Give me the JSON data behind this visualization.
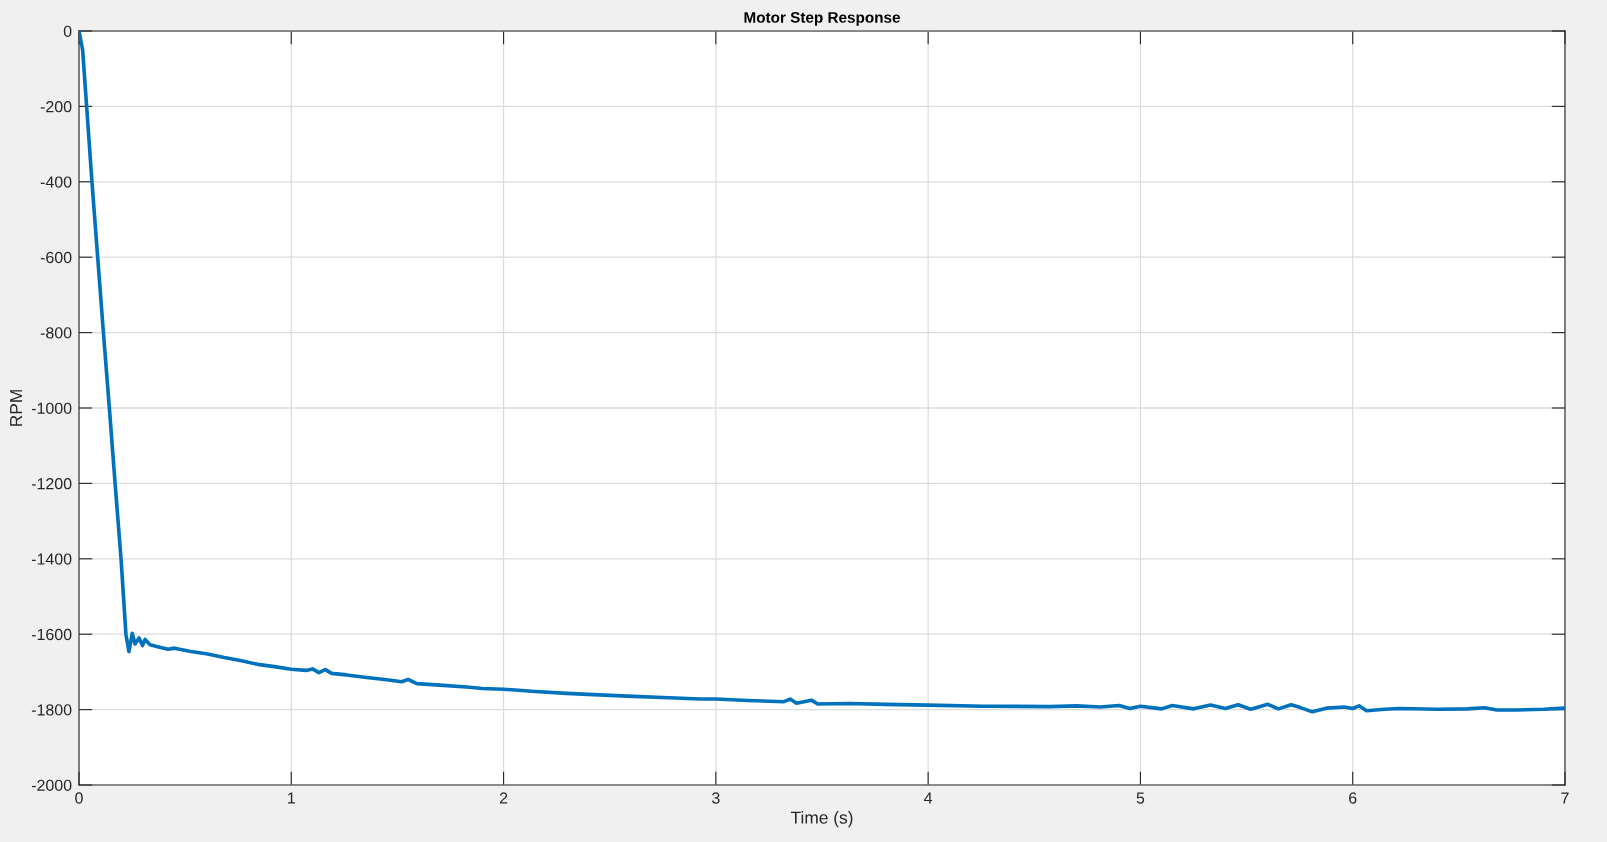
{
  "chart_data": {
    "type": "line",
    "title": "Motor Step Response",
    "xlabel": "Time (s)",
    "ylabel": "RPM",
    "x": [
      0,
      0.017,
      0.036,
      0.061,
      0.088,
      0.115,
      0.143,
      0.17,
      0.198,
      0.221,
      0.235,
      0.251,
      0.264,
      0.283,
      0.299,
      0.311,
      0.335,
      0.37,
      0.42,
      0.45,
      0.527,
      0.6,
      0.684,
      0.76,
      0.842,
      0.92,
      1.0,
      1.07,
      1.1,
      1.13,
      1.16,
      1.19,
      1.26,
      1.355,
      1.45,
      1.52,
      1.55,
      1.591,
      1.7,
      1.826,
      1.9,
      2.0,
      2.15,
      2.297,
      2.45,
      2.611,
      2.75,
      2.925,
      3.0,
      3.15,
      3.32,
      3.35,
      3.38,
      3.45,
      3.48,
      3.63,
      3.8,
      4.0,
      4.26,
      4.57,
      4.7,
      4.81,
      4.9,
      4.95,
      5.0,
      5.1,
      5.15,
      5.25,
      5.33,
      5.4,
      5.46,
      5.52,
      5.6,
      5.65,
      5.71,
      5.75,
      5.81,
      5.88,
      5.96,
      6.0,
      6.03,
      6.065,
      6.15,
      6.22,
      6.4,
      6.54,
      6.62,
      6.68,
      6.77,
      6.9,
      7.0
    ],
    "series": [
      {
        "color": "#0072bd",
        "values": [
          0,
          -50,
          -200,
          -400,
          -600,
          -800,
          -1000,
          -1200,
          -1400,
          -1600,
          -1646,
          -1598,
          -1626,
          -1610,
          -1630,
          -1614,
          -1628,
          -1633,
          -1640,
          -1637,
          -1646,
          -1652,
          -1662,
          -1670,
          -1680,
          -1686,
          -1693,
          -1696,
          -1692,
          -1702,
          -1694,
          -1704,
          -1708,
          -1715,
          -1721,
          -1726,
          -1720,
          -1731,
          -1735,
          -1740,
          -1744,
          -1746,
          -1752,
          -1757,
          -1761,
          -1765,
          -1768,
          -1772,
          -1772,
          -1776,
          -1779,
          -1772,
          -1783,
          -1775,
          -1785,
          -1784,
          -1786,
          -1788,
          -1791,
          -1792,
          -1790,
          -1793,
          -1789,
          -1797,
          -1791,
          -1798,
          -1789,
          -1798,
          -1788,
          -1797,
          -1787,
          -1799,
          -1786,
          -1798,
          -1787,
          -1794,
          -1806,
          -1796,
          -1793,
          -1797,
          -1790,
          -1803,
          -1799,
          -1797,
          -1799,
          -1798,
          -1795,
          -1801,
          -1801,
          -1799,
          -1796
        ]
      }
    ],
    "xlim": [
      0,
      7
    ],
    "ylim": [
      -2000,
      0
    ],
    "xticks": [
      0,
      1,
      2,
      3,
      4,
      5,
      6,
      7
    ],
    "yticks": [
      -2000,
      -1800,
      -1600,
      -1400,
      -1200,
      -1000,
      -800,
      -600,
      -400,
      -200,
      0
    ],
    "grid": true,
    "line_style": "solid"
  }
}
